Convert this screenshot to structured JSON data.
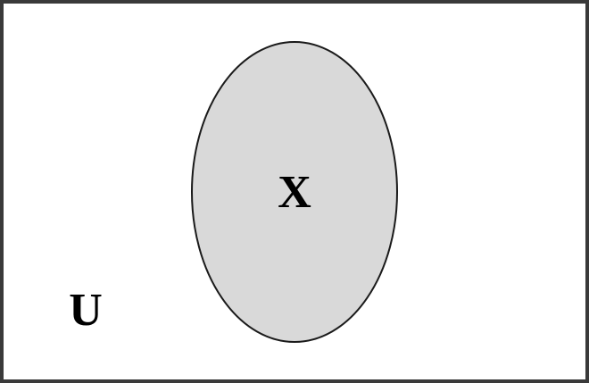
{
  "diagram": {
    "universe": {
      "label": "U",
      "border_color": "#3a3a3a",
      "fill_color": "#ffffff"
    },
    "set_x": {
      "label": "X",
      "fill_color": "#d9d9d9",
      "border_color": "#1a1a1a",
      "shaded": true
    }
  }
}
